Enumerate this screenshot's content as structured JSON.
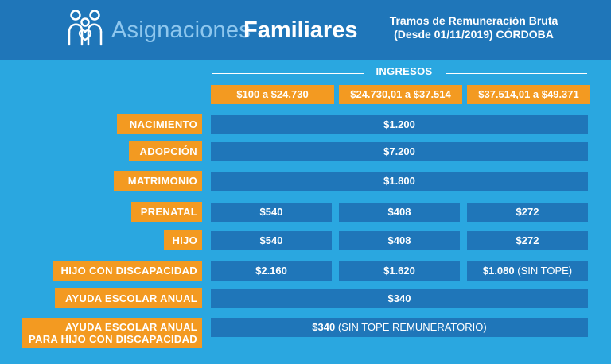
{
  "header": {
    "title_light": "Asignaciones",
    "title_bold": "Familiares",
    "subtitle_line1": "Tramos de Remuneración Bruta",
    "subtitle_line2": "(Desde 01/11/2019) CÓRDOBA",
    "logo_icon": "family-icon"
  },
  "ingresos": {
    "label": "INGRESOS",
    "ranges": [
      "$100 a $24.730",
      "$24.730,01 a $37.514",
      "$37.514,01 a $49.371"
    ]
  },
  "rows": [
    {
      "label": "NACIMIENTO",
      "value": "$1.200"
    },
    {
      "label": "ADOPCIÓN",
      "value": "$7.200"
    },
    {
      "label": "MATRIMONIO",
      "value": "$1.800"
    },
    {
      "label": "PRENATAL",
      "values": [
        "$540",
        "$408",
        "$272"
      ]
    },
    {
      "label": "HIJO",
      "values": [
        "$540",
        "$408",
        "$272"
      ]
    },
    {
      "label": "HIJO CON DISCAPACIDAD",
      "values": [
        "$2.160",
        "$1.620",
        "$1.080"
      ],
      "note": "(SIN TOPE)"
    },
    {
      "label": "AYUDA ESCOLAR ANUAL",
      "value": "$340"
    },
    {
      "label_line1": "AYUDA ESCOLAR ANUAL",
      "label_line2": "PARA HIJO CON DISCAPACIDAD",
      "value": "$340",
      "note": "(SIN TOPE REMUNERATORIO)"
    }
  ],
  "colors": {
    "background": "#2aa7e0",
    "header": "#1f76b9",
    "accent": "#f39a21",
    "cell": "#1f76b9"
  }
}
